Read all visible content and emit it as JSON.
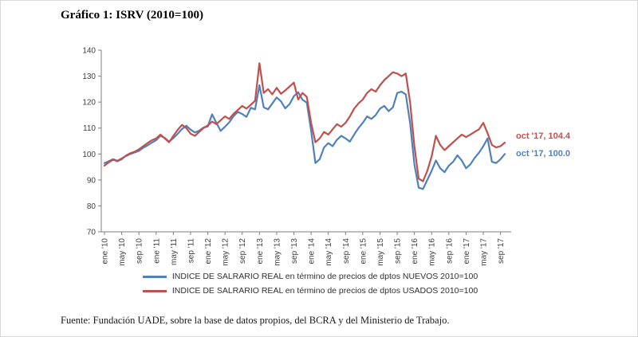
{
  "page": {
    "title": "Gráfico 1: ISRV (2010=100)",
    "source": "Fuente: Fundación UADE, sobre la base de datos propios, del BCRA y del Ministerio de Trabajo."
  },
  "chart_data": {
    "type": "line",
    "title": "Gráfico 1: ISRV (2010=100)",
    "xlabel": "",
    "ylabel": "",
    "ylim": [
      70,
      140
    ],
    "grid": false,
    "legend_position": "bottom",
    "y_tick_labels": [
      70,
      80,
      90,
      100,
      110,
      120,
      130,
      140
    ],
    "x_tick_labels": [
      "ene '10",
      "may '10",
      "sep '10",
      "ene '11",
      "may '11",
      "sep '11",
      "ene '12",
      "may '12",
      "sep '12",
      "ene '13",
      "may '13",
      "sep '13",
      "ene '14",
      "may '14",
      "sep '14",
      "ene '15",
      "may '15",
      "sep '15",
      "ene '16",
      "may '16",
      "sep '16",
      "ene '17",
      "may '17",
      "sep '17"
    ],
    "x_tick_positions": [
      0,
      4,
      8,
      12,
      16,
      20,
      24,
      28,
      32,
      36,
      40,
      44,
      48,
      52,
      56,
      60,
      64,
      68,
      72,
      76,
      80,
      84,
      88,
      92
    ],
    "x_range_note": "monthly ene 2010 - oct 2017 (94 points)",
    "series": [
      {
        "name": "INDICE DE SALRARIO REAL en término de precios de dptos NUEVOS 2010=100",
        "color": "#4F81BD",
        "values": [
          96.5,
          97.2,
          98.0,
          97.4,
          98.3,
          99.2,
          100.0,
          100.6,
          101.2,
          102.4,
          103.3,
          104.4,
          105.3,
          107.0,
          106.2,
          104.8,
          106.1,
          107.8,
          109.6,
          110.9,
          109.4,
          108.3,
          109.0,
          110.2,
          110.6,
          115.3,
          112.0,
          108.9,
          110.5,
          112.2,
          114.6,
          116.2,
          115.4,
          114.3,
          117.8,
          117.2,
          126.5,
          118.0,
          117.2,
          119.5,
          121.8,
          120.3,
          117.6,
          119.2,
          122.3,
          123.8,
          120.9,
          119.8,
          109.0,
          96.5,
          98.0,
          102.5,
          104.2,
          103.0,
          105.5,
          107.0,
          106.0,
          104.8,
          107.5,
          110.0,
          112.0,
          114.5,
          113.5,
          115.0,
          117.5,
          118.5,
          116.5,
          118.0,
          123.5,
          124.0,
          123.0,
          112.0,
          96.0,
          87.0,
          86.5,
          90.0,
          93.5,
          97.5,
          94.5,
          93.0,
          95.5,
          97.0,
          99.5,
          97.5,
          94.5,
          96.0,
          98.5,
          100.5,
          103.0,
          106.0,
          97.0,
          96.5,
          98.0,
          100.0
        ]
      },
      {
        "name": "INDICE DE SALRARIO REAL en término de precios de dptos USADOS 2010=100",
        "color": "#C0504D",
        "values": [
          95.5,
          96.8,
          97.8,
          97.2,
          98.0,
          99.4,
          100.3,
          100.9,
          101.8,
          103.0,
          104.2,
          105.3,
          106.0,
          107.5,
          106.0,
          104.5,
          107.0,
          109.3,
          111.2,
          110.0,
          107.8,
          107.0,
          108.5,
          110.0,
          111.0,
          112.5,
          111.5,
          113.0,
          114.5,
          113.5,
          115.5,
          117.0,
          118.5,
          117.5,
          119.0,
          120.5,
          135.0,
          123.5,
          125.0,
          123.0,
          125.5,
          123.2,
          124.5,
          126.0,
          127.5,
          121.0,
          123.5,
          122.0,
          112.0,
          104.5,
          106.0,
          108.5,
          107.5,
          109.5,
          111.5,
          110.5,
          112.0,
          114.5,
          117.5,
          119.5,
          121.0,
          123.5,
          125.0,
          124.0,
          126.5,
          128.5,
          130.0,
          131.5,
          131.0,
          130.0,
          131.0,
          120.0,
          103.0,
          90.5,
          89.5,
          93.5,
          99.0,
          107.0,
          103.5,
          101.5,
          103.0,
          104.5,
          106.0,
          107.5,
          106.5,
          107.5,
          108.5,
          109.5,
          112.0,
          108.0,
          103.5,
          102.5,
          103.0,
          104.4
        ]
      }
    ],
    "annotations": [
      {
        "text": "oct '17, 104.4",
        "color": "#C0504D"
      },
      {
        "text": "oct '17, 100.0",
        "color": "#4F81BD"
      }
    ]
  }
}
